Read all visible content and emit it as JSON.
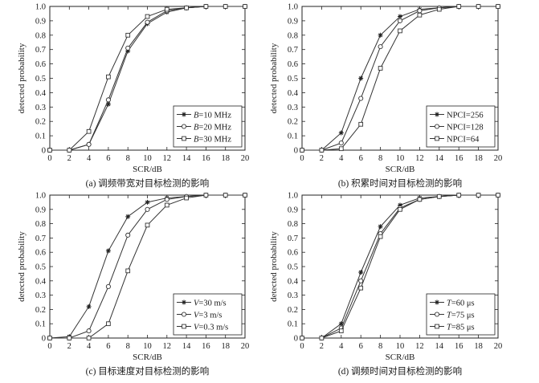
{
  "chart_data": [
    {
      "type": "line",
      "caption": "(a) 调频带宽对目标检测的影响",
      "xlabel": "SCR/dB",
      "ylabel": "detected probability",
      "xlim": [
        0,
        20
      ],
      "ylim": [
        0,
        1
      ],
      "xticks": [
        0,
        2,
        4,
        6,
        8,
        10,
        12,
        14,
        16,
        18,
        20
      ],
      "yticks": [
        0,
        0.1,
        0.2,
        0.3,
        0.4,
        0.5,
        0.6,
        0.7,
        0.8,
        0.9,
        1.0
      ],
      "grid": false,
      "legend_position": "bottom-right",
      "x": [
        0,
        2,
        4,
        6,
        8,
        10,
        12,
        14,
        16,
        18,
        20
      ],
      "series": [
        {
          "var": "B",
          "rest": "=10 MHz",
          "marker": "star",
          "values": [
            0,
            0,
            0.04,
            0.32,
            0.69,
            0.88,
            0.96,
            0.99,
            1.0,
            1.0,
            1.0
          ]
        },
        {
          "var": "B",
          "rest": "=20 MHz",
          "marker": "circle",
          "values": [
            0,
            0,
            0.04,
            0.35,
            0.71,
            0.89,
            0.97,
            0.99,
            1.0,
            1.0,
            1.0
          ]
        },
        {
          "var": "B",
          "rest": "=30 MHz",
          "marker": "square",
          "values": [
            0,
            0,
            0.13,
            0.51,
            0.8,
            0.93,
            0.98,
            0.99,
            1.0,
            1.0,
            1.0
          ]
        }
      ]
    },
    {
      "type": "line",
      "caption": "(b) 积累时间对目标检测的影响",
      "xlabel": "SCR/dB",
      "ylabel": "detected probability",
      "xlim": [
        0,
        20
      ],
      "ylim": [
        0,
        1
      ],
      "xticks": [
        0,
        2,
        4,
        6,
        8,
        10,
        12,
        14,
        16,
        18,
        20
      ],
      "yticks": [
        0,
        0.1,
        0.2,
        0.3,
        0.4,
        0.5,
        0.6,
        0.7,
        0.8,
        0.9,
        1.0
      ],
      "grid": false,
      "legend_position": "bottom-right",
      "x": [
        0,
        2,
        4,
        6,
        8,
        10,
        12,
        14,
        16,
        18,
        20
      ],
      "series": [
        {
          "var": "",
          "rest": "NPCI=256",
          "marker": "star",
          "values": [
            0,
            0,
            0.12,
            0.5,
            0.8,
            0.93,
            0.98,
            0.99,
            1.0,
            1.0,
            1.0
          ]
        },
        {
          "var": "",
          "rest": "NPCI=128",
          "marker": "circle",
          "values": [
            0,
            0,
            0.05,
            0.36,
            0.72,
            0.9,
            0.97,
            0.99,
            1.0,
            1.0,
            1.0
          ]
        },
        {
          "var": "",
          "rest": "NPCI=64",
          "marker": "square",
          "values": [
            0,
            0,
            0.01,
            0.18,
            0.57,
            0.83,
            0.94,
            0.98,
            1.0,
            1.0,
            1.0
          ]
        }
      ]
    },
    {
      "type": "line",
      "caption": "(c) 目标速度对目标检测的影响",
      "xlabel": "SCR/dB",
      "ylabel": "detected probability",
      "xlim": [
        0,
        20
      ],
      "ylim": [
        0,
        1
      ],
      "xticks": [
        0,
        2,
        4,
        6,
        8,
        10,
        12,
        14,
        16,
        18,
        20
      ],
      "yticks": [
        0,
        0.1,
        0.2,
        0.3,
        0.4,
        0.5,
        0.6,
        0.7,
        0.8,
        0.9,
        1.0
      ],
      "grid": false,
      "legend_position": "bottom-right",
      "x": [
        0,
        2,
        4,
        6,
        8,
        10,
        12,
        14,
        16,
        18,
        20
      ],
      "series": [
        {
          "var": "V",
          "rest": "=30 m/s",
          "marker": "star",
          "values": [
            0,
            0.01,
            0.22,
            0.61,
            0.85,
            0.95,
            0.98,
            0.99,
            1.0,
            1.0,
            1.0
          ]
        },
        {
          "var": "V",
          "rest": "=3 m/s",
          "marker": "circle",
          "values": [
            0,
            0,
            0.05,
            0.36,
            0.72,
            0.9,
            0.97,
            0.99,
            1.0,
            1.0,
            1.0
          ]
        },
        {
          "var": "V",
          "rest": "=0.3 m/s",
          "marker": "square",
          "values": [
            0,
            0,
            0,
            0.1,
            0.47,
            0.79,
            0.93,
            0.98,
            1.0,
            1.0,
            1.0
          ]
        }
      ]
    },
    {
      "type": "line",
      "caption": "(d) 调频时间对目标检测的影响",
      "xlabel": "SCR/dB",
      "ylabel": "detected probability",
      "xlim": [
        0,
        20
      ],
      "ylim": [
        0,
        1
      ],
      "xticks": [
        0,
        2,
        4,
        6,
        8,
        10,
        12,
        14,
        16,
        18,
        20
      ],
      "yticks": [
        0,
        0.1,
        0.2,
        0.3,
        0.4,
        0.5,
        0.6,
        0.7,
        0.8,
        0.9,
        1.0
      ],
      "grid": false,
      "legend_position": "bottom-right",
      "x": [
        0,
        2,
        4,
        6,
        8,
        10,
        12,
        14,
        16,
        18,
        20
      ],
      "series": [
        {
          "var": "T",
          "rest": "=60 μs",
          "marker": "star",
          "values": [
            0,
            0,
            0.1,
            0.46,
            0.78,
            0.93,
            0.98,
            0.99,
            1.0,
            1.0,
            1.0
          ]
        },
        {
          "var": "T",
          "rest": "=75 μs",
          "marker": "circle",
          "values": [
            0,
            0,
            0.07,
            0.4,
            0.73,
            0.91,
            0.97,
            0.99,
            1.0,
            1.0,
            1.0
          ]
        },
        {
          "var": "T",
          "rest": "=85 μs",
          "marker": "square",
          "values": [
            0,
            0,
            0.05,
            0.35,
            0.71,
            0.9,
            0.97,
            0.99,
            1.0,
            1.0,
            1.0
          ]
        }
      ]
    }
  ]
}
